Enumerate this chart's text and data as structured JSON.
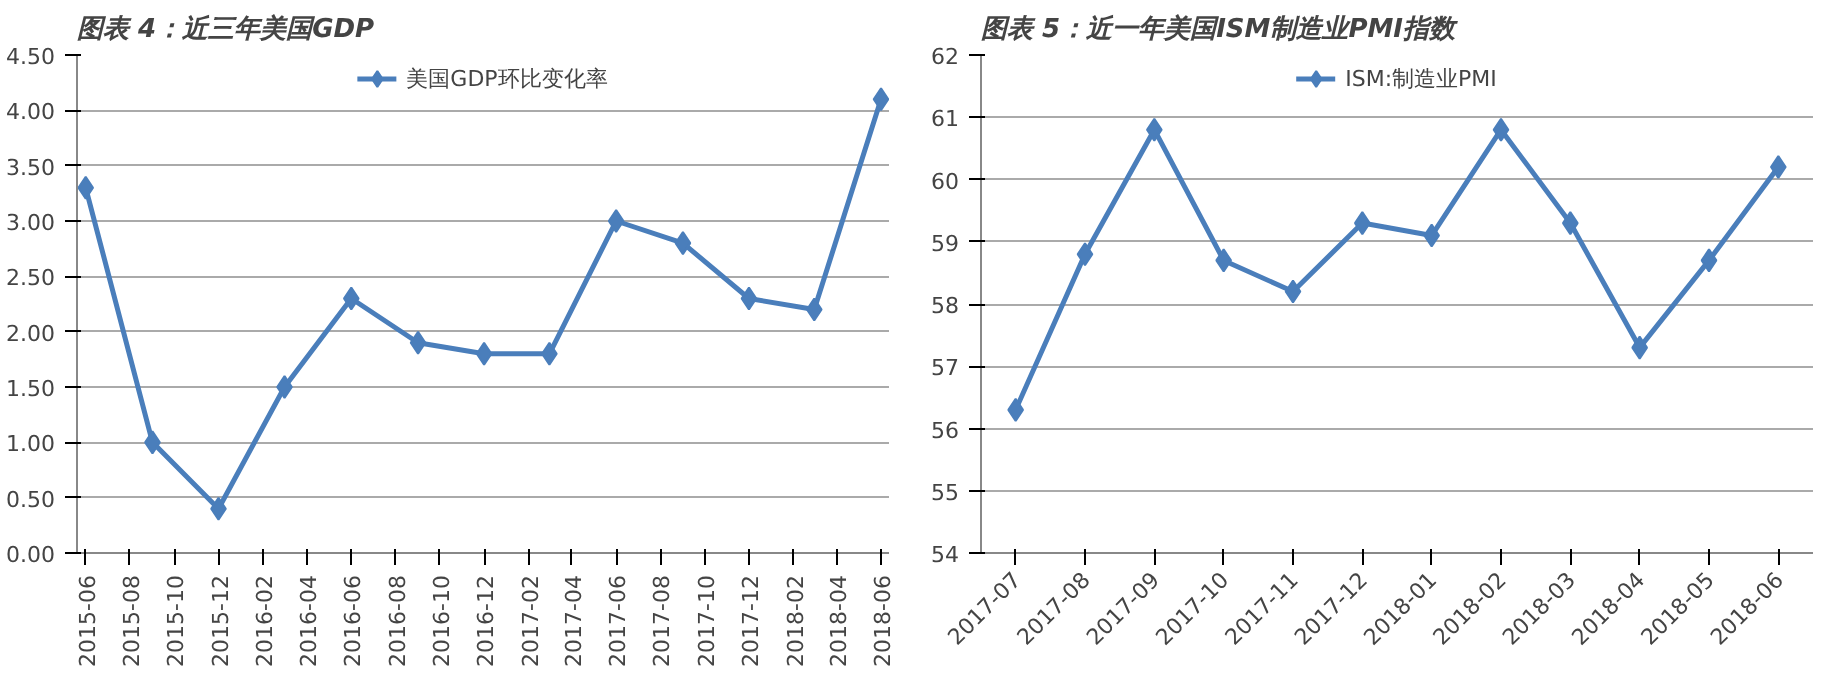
{
  "chart_data": [
    {
      "type": "line",
      "title": "图表 4：近三年美国GDP",
      "x": [
        "2015-06",
        "2015-09",
        "2015-12",
        "2016-03",
        "2016-06",
        "2016-09",
        "2016-12",
        "2017-03",
        "2017-06",
        "2017-09",
        "2017-12",
        "2018-03",
        "2018-06"
      ],
      "series": [
        {
          "name": "美国GDP环比变化率",
          "color": "#4a7ebb",
          "values": [
            3.3,
            1.0,
            0.4,
            1.5,
            2.3,
            1.9,
            1.8,
            1.8,
            3.0,
            2.8,
            2.3,
            2.2,
            4.1
          ]
        }
      ],
      "xlim": [
        "2015-05-20",
        "2018-06-12"
      ],
      "xticks": [
        "2015-06",
        "2015-08",
        "2015-10",
        "2015-12",
        "2016-02",
        "2016-04",
        "2016-06",
        "2016-08",
        "2016-10",
        "2016-12",
        "2017-02",
        "2017-04",
        "2017-06",
        "2017-08",
        "2017-10",
        "2017-12",
        "2018-02",
        "2018-04",
        "2018-06"
      ],
      "ylim": [
        0,
        4.5
      ],
      "yticks": [
        {
          "value": 0,
          "label": "0.00"
        },
        {
          "value": 0.5,
          "label": "0.50"
        },
        {
          "value": 1,
          "label": "1.00"
        },
        {
          "value": 1.5,
          "label": "1.50"
        },
        {
          "value": 2,
          "label": "2.00"
        },
        {
          "value": 2.5,
          "label": "2.50"
        },
        {
          "value": 3,
          "label": "3.00"
        },
        {
          "value": 3.5,
          "label": "3.50"
        },
        {
          "value": 4,
          "label": "4.00"
        },
        {
          "value": 4.5,
          "label": "4.50"
        }
      ],
      "grid": "y",
      "legend": "top",
      "marker": "diamond",
      "line_style": "solid"
    },
    {
      "type": "line",
      "title": "图表 5：近一年美国ISM制造业PMI指数",
      "categories": [
        "2017-07",
        "2017-08",
        "2017-09",
        "2017-10",
        "2017-11",
        "2017-12",
        "2018-01",
        "2018-02",
        "2018-03",
        "2018-04",
        "2018-05",
        "2018-06"
      ],
      "series": [
        {
          "name": "ISM:制造业PMI",
          "color": "#4a7ebb",
          "values": [
            56.3,
            58.8,
            60.8,
            58.7,
            58.2,
            59.3,
            59.1,
            60.8,
            59.3,
            57.3,
            58.7,
            60.2
          ]
        }
      ],
      "ylim": [
        54,
        62
      ],
      "yticks": [
        54,
        55,
        56,
        57,
        58,
        59,
        60,
        61,
        62
      ],
      "grid": "y",
      "legend": "top",
      "marker": "diamond",
      "line_style": "solid"
    }
  ]
}
